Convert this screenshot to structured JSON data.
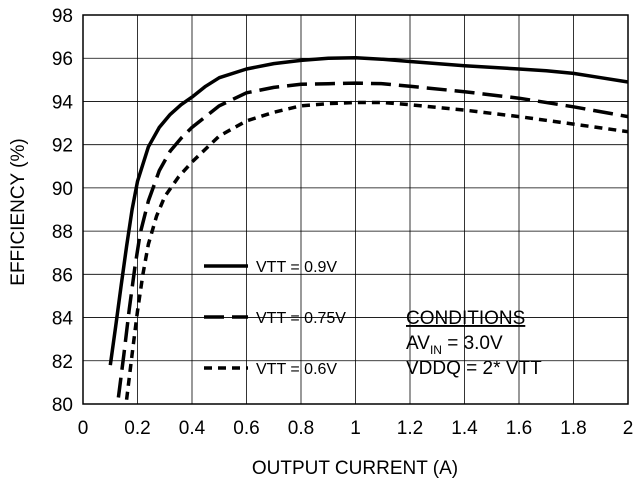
{
  "chart_data": {
    "type": "line",
    "title": "",
    "xlabel": "OUTPUT CURRENT (A)",
    "ylabel": "EFFICIENCY (%)",
    "xlim": [
      0,
      2
    ],
    "ylim": [
      80,
      98
    ],
    "xticks": [
      0,
      0.2,
      0.4,
      0.6,
      0.8,
      1,
      1.2,
      1.4,
      1.6,
      1.8,
      2
    ],
    "xtick_labels": [
      "0",
      "0.2",
      "0.4",
      "0.6",
      "0.8",
      "1",
      "1.2",
      "1.4",
      "1.6",
      "1.8",
      "2"
    ],
    "yticks": [
      80,
      82,
      84,
      86,
      88,
      90,
      92,
      94,
      96,
      98
    ],
    "ytick_labels": [
      "80",
      "82",
      "84",
      "86",
      "88",
      "90",
      "92",
      "94",
      "96",
      "98"
    ],
    "grid": true,
    "legend_position": "lower-left (inside plot)",
    "series": [
      {
        "name": "VTT = 0.9V",
        "style": "solid",
        "x": [
          0.1,
          0.12,
          0.14,
          0.16,
          0.18,
          0.2,
          0.24,
          0.28,
          0.32,
          0.36,
          0.4,
          0.45,
          0.5,
          0.6,
          0.7,
          0.8,
          0.9,
          1.0,
          1.1,
          1.2,
          1.4,
          1.6,
          1.7,
          1.8,
          1.9,
          2.0
        ],
        "y": [
          81.8,
          83.6,
          85.5,
          87.3,
          89.0,
          90.3,
          91.9,
          92.8,
          93.4,
          93.85,
          94.2,
          94.7,
          95.1,
          95.5,
          95.75,
          95.9,
          96.0,
          96.02,
          95.95,
          95.85,
          95.65,
          95.5,
          95.42,
          95.3,
          95.1,
          94.9
        ]
      },
      {
        "name": "VTT = 0.75V",
        "style": "long-dash",
        "x": [
          0.13,
          0.15,
          0.17,
          0.19,
          0.21,
          0.24,
          0.28,
          0.32,
          0.36,
          0.4,
          0.45,
          0.5,
          0.6,
          0.7,
          0.8,
          0.9,
          1.0,
          1.1,
          1.2,
          1.4,
          1.6,
          1.8,
          2.0
        ],
        "y": [
          80.3,
          82.3,
          84.4,
          86.3,
          87.9,
          89.4,
          90.8,
          91.7,
          92.3,
          92.8,
          93.3,
          93.8,
          94.4,
          94.65,
          94.8,
          94.82,
          94.85,
          94.82,
          94.7,
          94.45,
          94.15,
          93.75,
          93.3
        ]
      },
      {
        "name": "VTT = 0.6V",
        "style": "short-dash",
        "x": [
          0.16,
          0.18,
          0.2,
          0.22,
          0.24,
          0.27,
          0.3,
          0.35,
          0.4,
          0.45,
          0.5,
          0.6,
          0.7,
          0.8,
          0.9,
          1.0,
          1.1,
          1.2,
          1.4,
          1.6,
          1.8,
          2.0
        ],
        "y": [
          80.2,
          82.3,
          84.3,
          86.0,
          87.4,
          88.7,
          89.6,
          90.5,
          91.2,
          91.8,
          92.4,
          93.1,
          93.5,
          93.8,
          93.9,
          93.95,
          93.95,
          93.85,
          93.6,
          93.3,
          92.95,
          92.6
        ]
      }
    ],
    "annotations": {
      "conditions_heading": "CONDITIONS",
      "av_prefix": "AV",
      "av_subscript": "IN",
      "av_value": " = 3.0V",
      "vddq": "VDDQ = 2* VTT"
    }
  }
}
